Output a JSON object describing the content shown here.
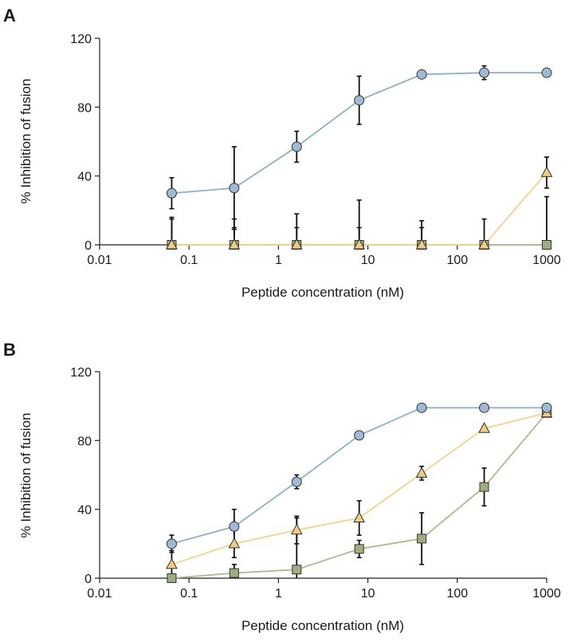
{
  "chart_data": [
    {
      "panel": "A",
      "type": "line",
      "xscale": "log",
      "xlabel": "Peptide concentration (nM)",
      "ylabel": "% Inhibition of fusion",
      "xlim": [
        0.01,
        1000
      ],
      "ylim": [
        0,
        120
      ],
      "xticks": [
        "0.01",
        "0.1",
        "1",
        "10",
        "100",
        "1000"
      ],
      "yticks": [
        "0",
        "40",
        "80",
        "120"
      ],
      "x": [
        0.064,
        0.32,
        1.6,
        8,
        40,
        200,
        1000
      ],
      "grid": false,
      "series": [
        {
          "marker": "circle",
          "line_color": "#8fb0c9",
          "fill_color": "#9fbad4",
          "values": [
            30,
            33,
            57,
            84,
            99,
            100,
            100
          ],
          "error": [
            9,
            24,
            9,
            14,
            2,
            4,
            0
          ]
        },
        {
          "marker": "triangle",
          "line_color": "#f2d48a",
          "fill_color": "#f0cc80",
          "values": [
            0,
            0,
            0,
            0,
            0,
            0,
            42
          ],
          "error": [
            15,
            15,
            10,
            10,
            10,
            15,
            9
          ]
        },
        {
          "marker": "square",
          "line_color": "#b0b890",
          "fill_color": "#9fae7e",
          "values": [
            0,
            0,
            0,
            0,
            0,
            0,
            0
          ],
          "error": [
            16,
            10,
            18,
            26,
            14,
            2,
            28
          ]
        }
      ]
    },
    {
      "panel": "B",
      "type": "line",
      "xscale": "log",
      "xlabel": "Peptide concentration (nM)",
      "ylabel": "% Inhibition of fusion",
      "xlim": [
        0.01,
        1000
      ],
      "ylim": [
        0,
        120
      ],
      "xticks": [
        "0.01",
        "0.1",
        "1",
        "10",
        "100",
        "1000"
      ],
      "yticks": [
        "0",
        "40",
        "80",
        "120"
      ],
      "x": [
        0.064,
        0.32,
        1.6,
        8,
        40,
        200,
        1000
      ],
      "grid": false,
      "series": [
        {
          "marker": "circle",
          "line_color": "#8fb0c9",
          "fill_color": "#9fbad4",
          "values": [
            20,
            30,
            56,
            83,
            99,
            99,
            99
          ],
          "error": [
            5,
            10,
            4,
            2,
            1,
            1,
            1
          ]
        },
        {
          "marker": "triangle",
          "line_color": "#f2d48a",
          "fill_color": "#f0cc80",
          "values": [
            8,
            20,
            28,
            35,
            61,
            87,
            96
          ],
          "error": [
            8,
            8,
            8,
            10,
            4,
            1,
            1
          ]
        },
        {
          "marker": "square",
          "line_color": "#b0b890",
          "fill_color": "#9fae7e",
          "values": [
            0,
            3,
            5,
            17,
            23,
            53,
            96
          ],
          "error": [
            1,
            5,
            30,
            5,
            15,
            11,
            1
          ]
        }
      ]
    }
  ]
}
